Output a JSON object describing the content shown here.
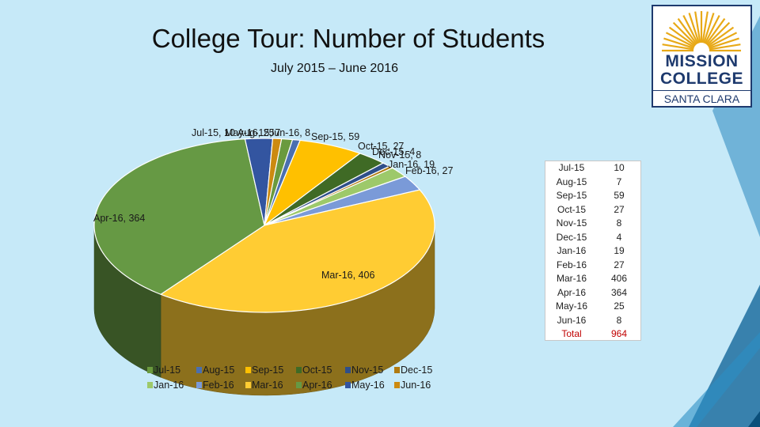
{
  "title": "College Tour: Number of Students",
  "subtitle": "July 2015 – June 2016",
  "logo": {
    "line1": "MISSION",
    "line2": "COLLEGE",
    "line3": "SANTA CLARA",
    "icon": "sunburst-icon"
  },
  "colors": {
    "background": "#c6e9f8",
    "accent": "#1e3a6e"
  },
  "chart_data": {
    "type": "pie",
    "style": "3d-pie",
    "legend_position": "bottom",
    "categories": [
      "Jul-15",
      "Aug-15",
      "Sep-15",
      "Oct-15",
      "Nov-15",
      "Dec-15",
      "Jan-16",
      "Feb-16",
      "Mar-16",
      "Apr-16",
      "May-16",
      "Jun-16"
    ],
    "values": [
      10,
      7,
      59,
      27,
      8,
      4,
      19,
      27,
      406,
      364,
      25,
      8
    ],
    "colors": [
      "#6a9a3e",
      "#4a6fb0",
      "#ffc000",
      "#3f6a25",
      "#2f4f8a",
      "#b07a10",
      "#9dc96a",
      "#7a9ad8",
      "#ffcc33",
      "#669944",
      "#3355a0",
      "#cc8a10"
    ],
    "data_labels": [
      "Jul-15, 10",
      "Aug-15, 7",
      "Sep-15, 59",
      "Oct-15, 27",
      "Nov-15, 8",
      "Dec-15, 4",
      "Jan-16, 19",
      "Feb-16, 27",
      "Mar-16, 406",
      "Apr-16, 364",
      "May-16, 25",
      "Jun-16, 8"
    ]
  },
  "table": {
    "rows": [
      {
        "month": "Jul-15",
        "value": "10"
      },
      {
        "month": "Aug-15",
        "value": "7"
      },
      {
        "month": "Sep-15",
        "value": "59"
      },
      {
        "month": "Oct-15",
        "value": "27"
      },
      {
        "month": "Nov-15",
        "value": "8"
      },
      {
        "month": "Dec-15",
        "value": "4"
      },
      {
        "month": "Jan-16",
        "value": "19"
      },
      {
        "month": "Feb-16",
        "value": "27"
      },
      {
        "month": "Mar-16",
        "value": "406"
      },
      {
        "month": "Apr-16",
        "value": "364"
      },
      {
        "month": "May-16",
        "value": "25"
      },
      {
        "month": "Jun-16",
        "value": "8"
      }
    ],
    "total_label": "Total",
    "total_value": "964"
  }
}
